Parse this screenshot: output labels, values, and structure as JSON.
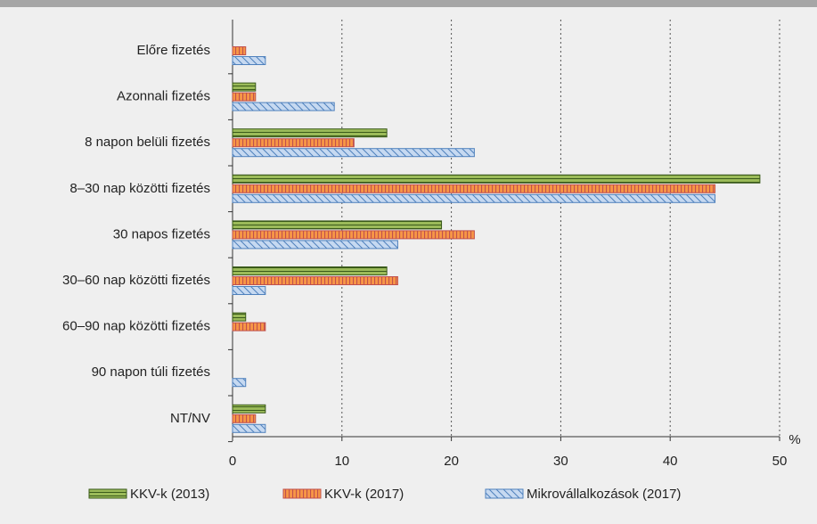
{
  "chart_data": {
    "type": "bar",
    "orientation": "horizontal",
    "categories": [
      "Előre fizetés",
      "Azonnali fizetés",
      "8 napon belüli fizetés",
      "8–30 nap közötti fizetés",
      "30 napos fizetés",
      "30–60 nap közötti fizetés",
      "60–90 nap közötti fizetés",
      "90 napon túli fizetés",
      "NT/NV"
    ],
    "series": [
      {
        "name": "KKV-k (2013)",
        "color": "#9bbb59",
        "values": [
          0,
          2.1,
          14.1,
          48.2,
          19.1,
          14.1,
          1.2,
          0,
          3.0
        ]
      },
      {
        "name": "KKV-k (2017)",
        "color": "#f79646",
        "values": [
          1.2,
          2.1,
          11.1,
          44.1,
          22.1,
          15.1,
          3.0,
          0,
          2.1
        ]
      },
      {
        "name": "Mikrovállalkozások (2017)",
        "color": "#c6d9f1",
        "values": [
          3.0,
          9.3,
          22.1,
          44.1,
          15.1,
          3.0,
          0,
          1.2,
          3.0
        ]
      }
    ],
    "xlabel": "%",
    "xlim": [
      0,
      50
    ],
    "xticks": [
      0,
      10,
      20,
      30,
      40,
      50
    ],
    "grid": true,
    "legend": "bottom"
  }
}
